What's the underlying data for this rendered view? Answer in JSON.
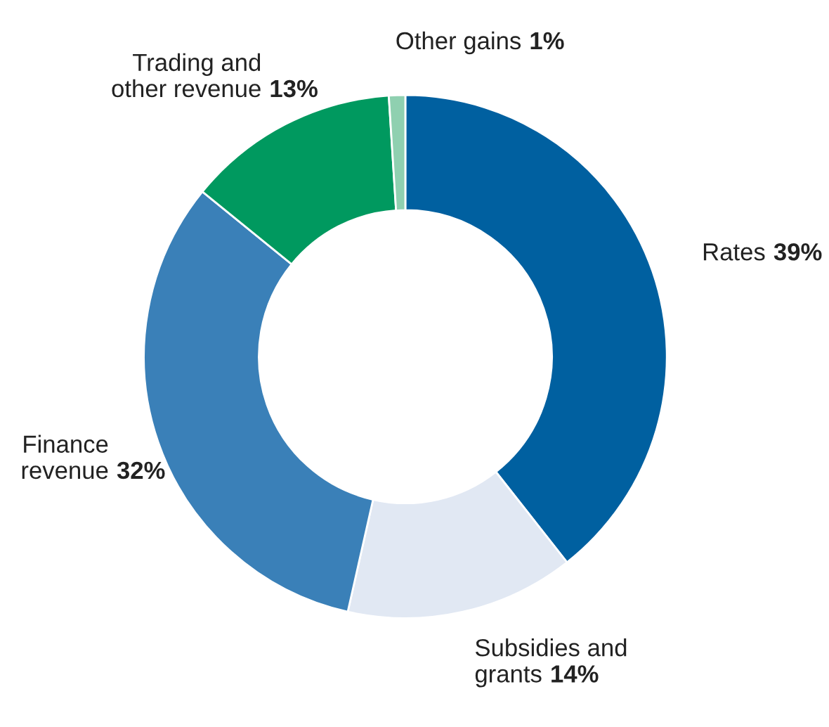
{
  "chart_data": {
    "type": "donut",
    "categories": [
      "Rates",
      "Subsidies and\ngrants",
      "Finance\nrevenue",
      "Trading and\nother revenue",
      "Other gains"
    ],
    "values": [
      39,
      14,
      32,
      13,
      1
    ],
    "value_labels": [
      "39%",
      "14%",
      "32%",
      "13%",
      "1%"
    ],
    "colors": [
      "#0060a0",
      "#e1e8f3",
      "#3a80b8",
      "#00995f",
      "#8fd0b0"
    ]
  }
}
